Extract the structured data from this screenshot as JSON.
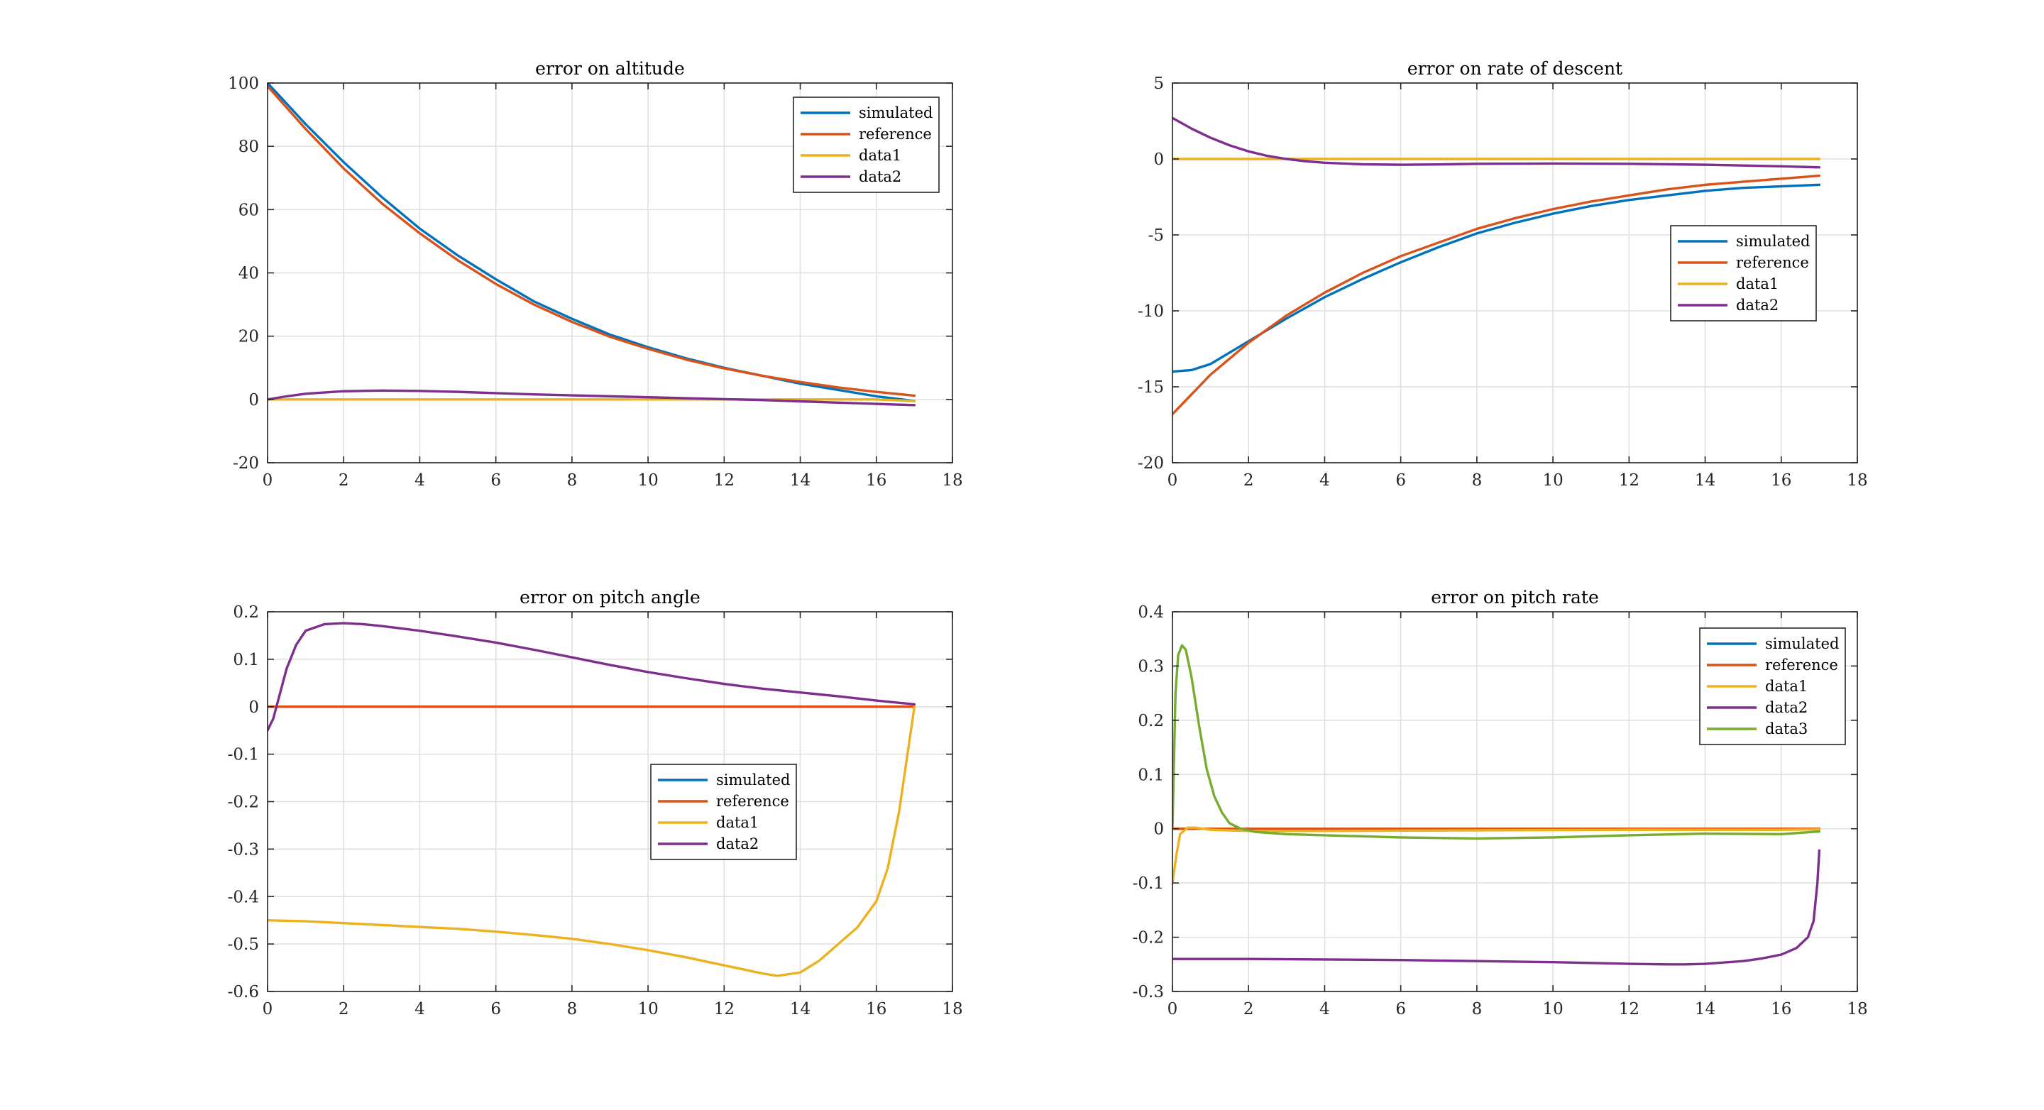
{
  "colors": {
    "simulated": "#0072BD",
    "reference": "#D95319",
    "data1": "#EDB120",
    "data2": "#7E2F8E",
    "data3": "#77AC30"
  },
  "chart_data": [
    {
      "id": "altitude",
      "type": "line",
      "title": "error on altitude",
      "xlabel": "",
      "ylabel": "",
      "xlim": [
        0,
        18
      ],
      "ylim": [
        -20,
        100
      ],
      "xticks": [
        0,
        2,
        4,
        6,
        8,
        10,
        12,
        14,
        16,
        18
      ],
      "yticks": [
        -20,
        0,
        20,
        40,
        60,
        80,
        100
      ],
      "grid": true,
      "legend_position": "top-right",
      "series": [
        {
          "name": "simulated",
          "color": "#0072BD",
          "x": [
            0,
            1,
            2,
            3,
            4,
            5,
            6,
            7,
            8,
            9,
            10,
            11,
            12,
            13,
            14,
            15,
            16,
            17
          ],
          "y": [
            100,
            87,
            75,
            64,
            54,
            45.5,
            38,
            31,
            25.5,
            20.5,
            16.5,
            13,
            10,
            7.5,
            5,
            3,
            1,
            -0.5
          ]
        },
        {
          "name": "reference",
          "color": "#D95319",
          "x": [
            0,
            1,
            2,
            3,
            4,
            5,
            6,
            7,
            8,
            9,
            10,
            11,
            12,
            13,
            14,
            15,
            16,
            17
          ],
          "y": [
            99,
            85.5,
            73,
            62,
            52.5,
            44,
            36.5,
            30,
            24.5,
            19.8,
            16,
            12.6,
            9.8,
            7.5,
            5.5,
            3.8,
            2.4,
            1.2
          ]
        },
        {
          "name": "data1",
          "color": "#EDB120",
          "x": [
            0,
            2,
            4,
            6,
            8,
            10,
            12,
            14,
            16,
            17
          ],
          "y": [
            0,
            0,
            0,
            0,
            0,
            0,
            0,
            0,
            0,
            -0.5
          ]
        },
        {
          "name": "data2",
          "color": "#7E2F8E",
          "x": [
            0,
            0.5,
            1,
            2,
            3,
            4,
            5,
            6,
            7,
            8,
            9,
            10,
            11,
            12,
            13,
            14,
            15,
            16,
            17
          ],
          "y": [
            0,
            1,
            1.8,
            2.6,
            2.8,
            2.7,
            2.4,
            2,
            1.6,
            1.3,
            1,
            0.7,
            0.4,
            0.1,
            -0.2,
            -0.6,
            -1,
            -1.4,
            -1.8
          ]
        }
      ]
    },
    {
      "id": "descent",
      "type": "line",
      "title": "error on rate of descent",
      "xlabel": "",
      "ylabel": "",
      "xlim": [
        0,
        18
      ],
      "ylim": [
        -20,
        5
      ],
      "xticks": [
        0,
        2,
        4,
        6,
        8,
        10,
        12,
        14,
        16,
        18
      ],
      "yticks": [
        -20,
        -15,
        -10,
        -5,
        0,
        5
      ],
      "grid": true,
      "legend_position": "right",
      "series": [
        {
          "name": "simulated",
          "color": "#0072BD",
          "x": [
            0,
            0.5,
            1,
            2,
            3,
            4,
            5,
            6,
            7,
            8,
            9,
            10,
            11,
            12,
            13,
            14,
            15,
            16,
            17
          ],
          "y": [
            -14,
            -13.9,
            -13.5,
            -12,
            -10.5,
            -9.1,
            -7.9,
            -6.8,
            -5.8,
            -4.9,
            -4.2,
            -3.6,
            -3.1,
            -2.7,
            -2.4,
            -2.1,
            -1.9,
            -1.8,
            -1.7
          ]
        },
        {
          "name": "reference",
          "color": "#D95319",
          "x": [
            0,
            0.5,
            1,
            2,
            3,
            4,
            5,
            6,
            7,
            8,
            9,
            10,
            11,
            12,
            13,
            14,
            15,
            16,
            17
          ],
          "y": [
            -16.8,
            -15.5,
            -14.2,
            -12.1,
            -10.3,
            -8.8,
            -7.5,
            -6.4,
            -5.5,
            -4.6,
            -3.9,
            -3.3,
            -2.8,
            -2.4,
            -2,
            -1.7,
            -1.5,
            -1.3,
            -1.1
          ]
        },
        {
          "name": "data1",
          "color": "#EDB120",
          "x": [
            0,
            2,
            4,
            6,
            8,
            10,
            12,
            14,
            16,
            17
          ],
          "y": [
            0,
            0,
            0,
            0,
            0,
            0,
            0,
            0,
            0,
            0
          ]
        },
        {
          "name": "data2",
          "color": "#7E2F8E",
          "x": [
            0,
            0.5,
            1,
            1.5,
            2,
            2.5,
            3,
            3.5,
            4,
            5,
            6,
            7,
            8,
            10,
            12,
            14,
            15,
            16,
            17
          ],
          "y": [
            2.7,
            2,
            1.4,
            0.9,
            0.5,
            0.2,
            0,
            -0.15,
            -0.25,
            -0.35,
            -0.38,
            -0.36,
            -0.32,
            -0.3,
            -0.32,
            -0.38,
            -0.43,
            -0.48,
            -0.55
          ]
        }
      ]
    },
    {
      "id": "pitch_angle",
      "type": "line",
      "title": "error on pitch angle",
      "xlabel": "",
      "ylabel": "",
      "xlim": [
        0,
        18
      ],
      "ylim": [
        -0.6,
        0.2
      ],
      "xticks": [
        0,
        2,
        4,
        6,
        8,
        10,
        12,
        14,
        16,
        18
      ],
      "yticks": [
        -0.6,
        -0.5,
        -0.4,
        -0.3,
        -0.2,
        -0.1,
        0,
        0.1,
        0.2
      ],
      "grid": true,
      "legend_position": "center-right",
      "series": [
        {
          "name": "simulated",
          "color": "#0072BD",
          "x": [
            0,
            4,
            8,
            12,
            16,
            17
          ],
          "y": [
            0,
            0,
            0,
            0,
            0,
            0
          ]
        },
        {
          "name": "reference",
          "color": "#D95319",
          "x": [
            0,
            4,
            8,
            12,
            16,
            17
          ],
          "y": [
            0,
            0,
            0,
            0,
            0,
            0
          ]
        },
        {
          "name": "data1",
          "color": "#EDB120",
          "x": [
            0,
            1,
            2,
            3,
            4,
            5,
            6,
            7,
            8,
            9,
            10,
            11,
            12,
            13,
            13.4,
            14,
            14.5,
            15,
            15.5,
            16,
            16.3,
            16.6,
            16.8,
            17
          ],
          "y": [
            -0.45,
            -0.452,
            -0.456,
            -0.46,
            -0.464,
            -0.468,
            -0.474,
            -0.481,
            -0.489,
            -0.5,
            -0.513,
            -0.528,
            -0.545,
            -0.562,
            -0.567,
            -0.56,
            -0.535,
            -0.5,
            -0.465,
            -0.41,
            -0.34,
            -0.22,
            -0.11,
            0
          ]
        },
        {
          "name": "data2",
          "color": "#7E2F8E",
          "x": [
            0,
            0.15,
            0.3,
            0.5,
            0.75,
            1,
            1.5,
            2,
            2.5,
            3,
            4,
            5,
            6,
            7,
            8,
            9,
            10,
            11,
            12,
            13,
            14,
            15,
            16,
            17
          ],
          "y": [
            -0.05,
            -0.025,
            0.02,
            0.08,
            0.13,
            0.16,
            0.174,
            0.176,
            0.174,
            0.17,
            0.16,
            0.148,
            0.135,
            0.12,
            0.104,
            0.088,
            0.073,
            0.06,
            0.048,
            0.038,
            0.03,
            0.022,
            0.013,
            0.005
          ]
        }
      ]
    },
    {
      "id": "pitch_rate",
      "type": "line",
      "title": "error on pitch rate",
      "xlabel": "",
      "ylabel": "",
      "xlim": [
        0,
        18
      ],
      "ylim": [
        -0.3,
        0.4
      ],
      "xticks": [
        0,
        2,
        4,
        6,
        8,
        10,
        12,
        14,
        16,
        18
      ],
      "yticks": [
        -0.3,
        -0.2,
        -0.1,
        0,
        0.1,
        0.2,
        0.3,
        0.4
      ],
      "grid": true,
      "legend_position": "top-right",
      "series": [
        {
          "name": "simulated",
          "color": "#0072BD",
          "x": [
            0,
            4,
            8,
            12,
            16,
            17
          ],
          "y": [
            0,
            0,
            0,
            0,
            0,
            0
          ]
        },
        {
          "name": "reference",
          "color": "#D95319",
          "x": [
            0,
            4,
            8,
            12,
            16,
            17
          ],
          "y": [
            0,
            0,
            0,
            0,
            0,
            0
          ]
        },
        {
          "name": "data1",
          "color": "#EDB120",
          "x": [
            0,
            0.1,
            0.2,
            0.4,
            0.6,
            1,
            2,
            4,
            8,
            12,
            16,
            17
          ],
          "y": [
            -0.1,
            -0.05,
            -0.01,
            0.002,
            0.002,
            -0.002,
            -0.004,
            -0.004,
            -0.003,
            -0.002,
            -0.002,
            -0.001
          ]
        },
        {
          "name": "data2",
          "color": "#7E2F8E",
          "x": [
            0,
            2,
            4,
            6,
            8,
            10,
            12,
            13,
            13.5,
            14,
            15,
            15.5,
            16,
            16.4,
            16.7,
            16.85,
            16.95,
            17
          ],
          "y": [
            -0.24,
            -0.24,
            -0.241,
            -0.242,
            -0.244,
            -0.246,
            -0.249,
            -0.25,
            -0.25,
            -0.249,
            -0.244,
            -0.239,
            -0.232,
            -0.22,
            -0.2,
            -0.17,
            -0.1,
            -0.04
          ]
        },
        {
          "name": "data3",
          "color": "#77AC30",
          "x": [
            0,
            0.08,
            0.15,
            0.25,
            0.35,
            0.5,
            0.7,
            0.9,
            1.1,
            1.3,
            1.5,
            1.8,
            2.2,
            3,
            4,
            6,
            8,
            10,
            12,
            14,
            16,
            17
          ],
          "y": [
            0,
            0.25,
            0.32,
            0.338,
            0.33,
            0.28,
            0.19,
            0.11,
            0.06,
            0.03,
            0.01,
            0,
            -0.006,
            -0.01,
            -0.012,
            -0.016,
            -0.018,
            -0.016,
            -0.012,
            -0.009,
            -0.01,
            -0.005
          ]
        }
      ]
    }
  ]
}
